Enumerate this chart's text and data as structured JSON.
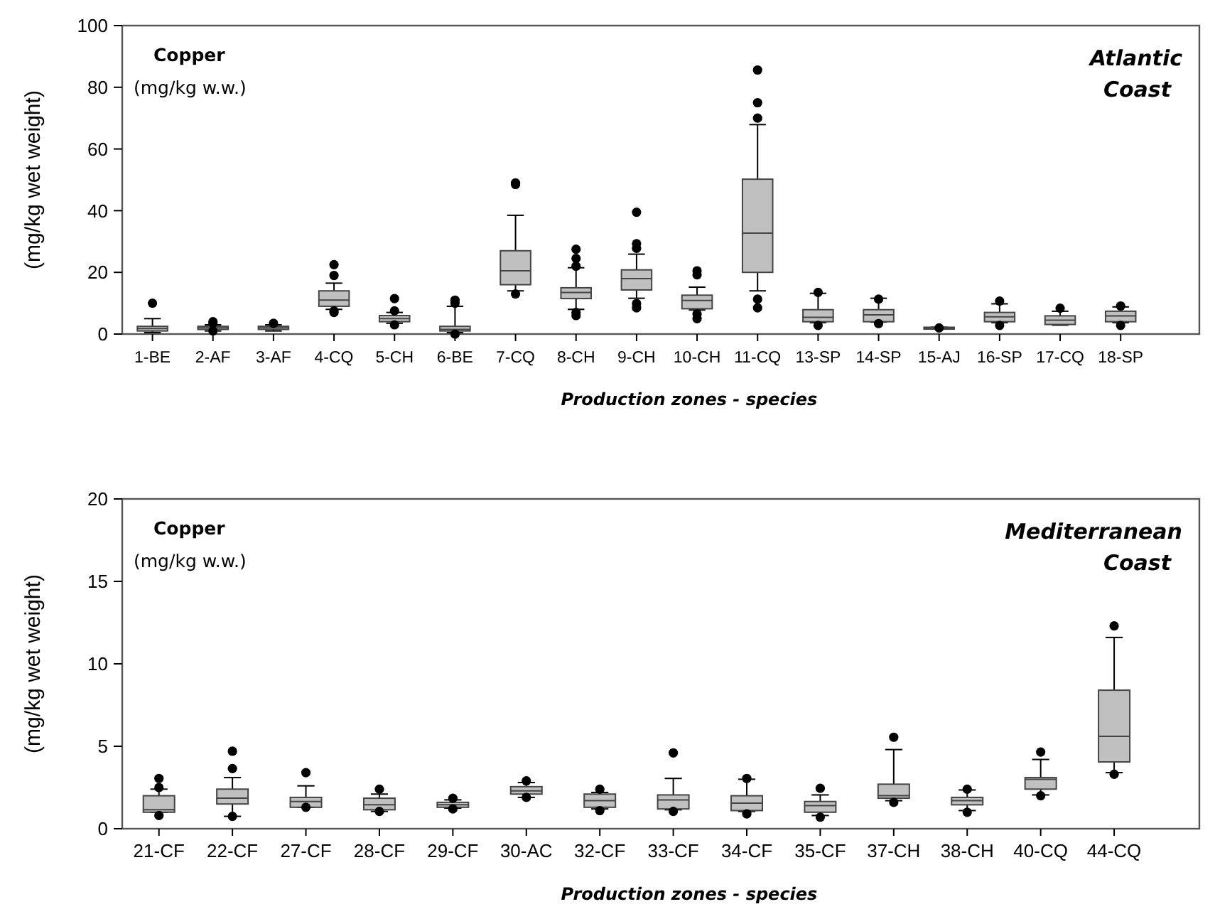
{
  "chart_data": [
    {
      "type": "box",
      "ylabel": "(mg/kg wet weight)",
      "xlabel": "Production zones - species",
      "annotations": [
        "Copper",
        "(mg/kg w.w.)",
        "Atlantic Coast"
      ],
      "categories": [
        "1-BE",
        "2-AF",
        "3-AF",
        "4-CQ",
        "5-CH",
        "6-BE",
        "7-CQ",
        "8-CH",
        "9-CH",
        "10-CH",
        "11-CQ",
        "13-SP",
        "14-SP",
        "15-AJ",
        "16-SP",
        "17-CQ",
        "18-SP"
      ],
      "ylim": [
        0,
        100
      ],
      "yticks": [
        0,
        20,
        40,
        60,
        80,
        100
      ],
      "series": [
        {
          "color": "#c0c0c0",
          "boxes": [
            {
              "low": 0.5,
              "q1": 1,
              "median": 1.8,
              "q3": 2.5,
              "high": 5,
              "outliers": [
                10
              ]
            },
            {
              "low": 1,
              "q1": 1.5,
              "median": 2,
              "q3": 2.5,
              "high": 3,
              "outliers": [
                3.5,
                4,
                1
              ]
            },
            {
              "low": 1,
              "q1": 1.5,
              "median": 2,
              "q3": 2.5,
              "high": 3,
              "outliers": [
                3.5
              ]
            },
            {
              "low": 8,
              "q1": 9,
              "median": 11,
              "q3": 14,
              "high": 16.5,
              "outliers": [
                19,
                22.5,
                7,
                7.5
              ]
            },
            {
              "low": 3.5,
              "q1": 4,
              "median": 5,
              "q3": 6,
              "high": 7,
              "outliers": [
                7.5,
                11.5,
                3
              ]
            },
            {
              "low": 0.5,
              "q1": 1,
              "median": 1.5,
              "q3": 2.5,
              "high": 9,
              "outliers": [
                10,
                11,
                0
              ]
            },
            {
              "low": 14,
              "q1": 16,
              "median": 20.5,
              "q3": 27,
              "high": 38.5,
              "outliers": [
                48.5,
                49,
                13
              ]
            },
            {
              "low": 8,
              "q1": 11.5,
              "median": 13.5,
              "q3": 15,
              "high": 21.5,
              "outliers": [
                22,
                24.5,
                27.5,
                7,
                6
              ]
            },
            {
              "low": 11.6,
              "q1": 14.3,
              "median": 18,
              "q3": 20.8,
              "high": 25.9,
              "outliers": [
                39.5,
                29.3,
                27.8,
                9.9,
                8.5
              ]
            },
            {
              "low": 7.8,
              "q1": 8.2,
              "median": 10.9,
              "q3": 12.6,
              "high": 15.2,
              "outliers": [
                20.5,
                19.2,
                6.5,
                5
              ]
            },
            {
              "low": 14,
              "q1": 20,
              "median": 32.7,
              "q3": 50.2,
              "high": 67.9,
              "outliers": [
                85.6,
                75,
                70,
                11.3,
                8.5
              ]
            },
            {
              "low": 3.7,
              "q1": 4,
              "median": 5.4,
              "q3": 7.9,
              "high": 13.2,
              "outliers": [
                13.5,
                2.8
              ]
            },
            {
              "low": 3.9,
              "q1": 4,
              "median": 6.2,
              "q3": 7.9,
              "high": 11.6,
              "outliers": [
                11.3,
                3.4
              ]
            },
            {
              "low": 1.6,
              "q1": 1.6,
              "median": 1.9,
              "q3": 2.2,
              "high": 2.2,
              "outliers": [
                2
              ]
            },
            {
              "low": 3.7,
              "q1": 4,
              "median": 5.6,
              "q3": 7,
              "high": 9.8,
              "outliers": [
                10.7,
                2.8
              ]
            },
            {
              "low": 2.9,
              "q1": 3.1,
              "median": 4.5,
              "q3": 5.9,
              "high": 7.4,
              "outliers": [
                8.4
              ]
            },
            {
              "low": 3.7,
              "q1": 4,
              "median": 5.9,
              "q3": 7.4,
              "high": 8.8,
              "outliers": [
                9.1,
                2.8
              ]
            }
          ]
        }
      ]
    },
    {
      "type": "box",
      "ylabel": "(mg/kg wet weight)",
      "xlabel": "Production zones - species",
      "annotations": [
        "Copper",
        "(mg/kg w.w.)",
        "Mediterranean Coast"
      ],
      "categories": [
        "21-CF",
        "22-CF",
        "27-CF",
        "28-CF",
        "29-CF",
        "30-AC",
        "32-CF",
        "33-CF",
        "34-CF",
        "35-CF",
        "37-CH",
        "38-CH",
        "40-CQ",
        "44-CQ"
      ],
      "ylim": [
        0,
        20
      ],
      "yticks": [
        0,
        5,
        10,
        15,
        20
      ],
      "series": [
        {
          "color": "#c0c0c0",
          "boxes": [
            {
              "low": 1,
              "q1": 1,
              "median": 1.15,
              "q3": 2,
              "high": 2.4,
              "outliers": [
                3.05,
                2.5,
                0.8
              ]
            },
            {
              "low": 0.75,
              "q1": 1.5,
              "median": 1.85,
              "q3": 2.4,
              "high": 3.1,
              "outliers": [
                4.7,
                3.65,
                0.75
              ]
            },
            {
              "low": 1.3,
              "q1": 1.3,
              "median": 1.65,
              "q3": 1.9,
              "high": 2.6,
              "outliers": [
                3.4,
                1.3
              ]
            },
            {
              "low": 1.05,
              "q1": 1.15,
              "median": 1.45,
              "q3": 1.85,
              "high": 2.1,
              "outliers": [
                2.4,
                1.05
              ]
            },
            {
              "low": 1.25,
              "q1": 1.3,
              "median": 1.45,
              "q3": 1.6,
              "high": 1.75,
              "outliers": [
                1.85,
                1.2
              ]
            },
            {
              "low": 1.9,
              "q1": 2.1,
              "median": 2.3,
              "q3": 2.55,
              "high": 2.8,
              "outliers": [
                2.9,
                1.9
              ]
            },
            {
              "low": 1.2,
              "q1": 1.3,
              "median": 1.7,
              "q3": 2.1,
              "high": 2.2,
              "outliers": [
                2.4,
                1.1
              ]
            },
            {
              "low": 1.15,
              "q1": 1.2,
              "median": 1.75,
              "q3": 2.05,
              "high": 3.05,
              "outliers": [
                4.6,
                1.05
              ]
            },
            {
              "low": 1.05,
              "q1": 1.1,
              "median": 1.55,
              "q3": 2,
              "high": 3,
              "outliers": [
                3.05,
                0.9
              ]
            },
            {
              "low": 0.8,
              "q1": 1,
              "median": 1.4,
              "q3": 1.65,
              "high": 2.05,
              "outliers": [
                2.45,
                0.7
              ]
            },
            {
              "low": 1.7,
              "q1": 1.85,
              "median": 2,
              "q3": 2.7,
              "high": 4.8,
              "outliers": [
                5.55,
                1.6
              ]
            },
            {
              "low": 1.1,
              "q1": 1.45,
              "median": 1.7,
              "q3": 1.9,
              "high": 2.35,
              "outliers": [
                2.4,
                1
              ]
            },
            {
              "low": 2.05,
              "q1": 2.4,
              "median": 3,
              "q3": 3.1,
              "high": 4.2,
              "outliers": [
                4.65,
                2
              ]
            },
            {
              "low": 3.4,
              "q1": 4.05,
              "median": 5.6,
              "q3": 8.4,
              "high": 11.6,
              "outliers": [
                12.3,
                3.3
              ]
            }
          ]
        }
      ]
    }
  ]
}
